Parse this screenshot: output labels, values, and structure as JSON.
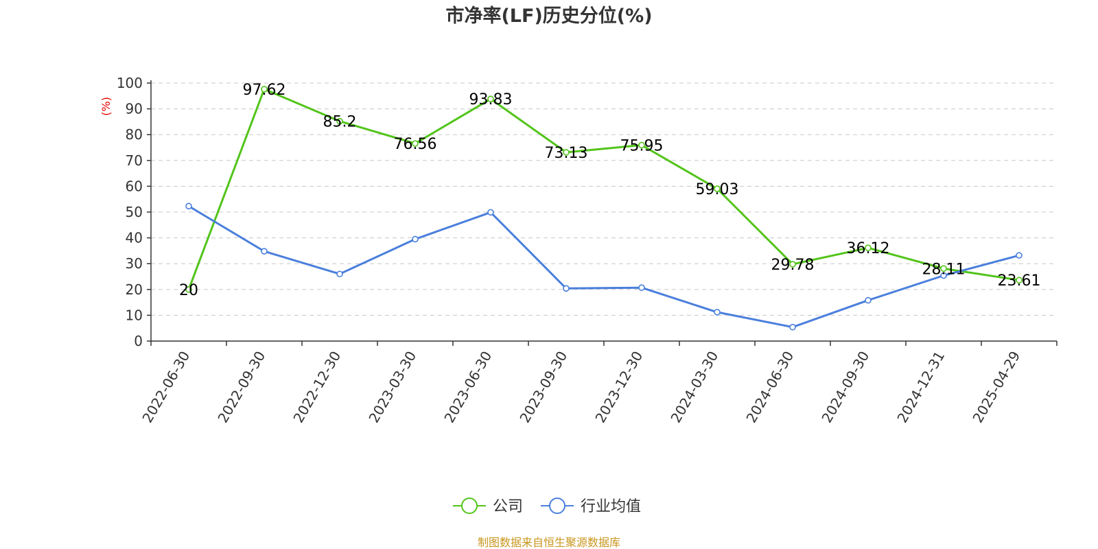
{
  "chart_data": {
    "type": "line",
    "title": "市净率(LF)历史分位(%)",
    "ylabel": "(%)",
    "xlabel": "",
    "ylim": [
      0,
      100
    ],
    "yticks": [
      0,
      10,
      20,
      30,
      40,
      50,
      60,
      70,
      80,
      90,
      100
    ],
    "grid": true,
    "legend_position": "bottom-center",
    "categories": [
      "2022-06-30",
      "2022-09-30",
      "2022-12-30",
      "2023-03-30",
      "2023-06-30",
      "2023-09-30",
      "2023-12-30",
      "2024-03-30",
      "2024-06-30",
      "2024-09-30",
      "2024-12-31",
      "2025-04-29"
    ],
    "series": [
      {
        "name": "公司",
        "color": "#52c41a",
        "show_labels": true,
        "values": [
          20,
          97.62,
          85.2,
          76.56,
          93.83,
          73.13,
          75.95,
          59.03,
          29.78,
          36.12,
          28.11,
          23.61
        ]
      },
      {
        "name": "行业均值",
        "color": "#4a7fdc",
        "show_labels": false,
        "values": [
          52.3,
          34.8,
          26.0,
          39.5,
          49.9,
          20.4,
          20.7,
          11.2,
          5.4,
          15.8,
          25.4,
          33.2
        ]
      }
    ]
  },
  "source_text": "制图数据来自恒生聚源数据库"
}
